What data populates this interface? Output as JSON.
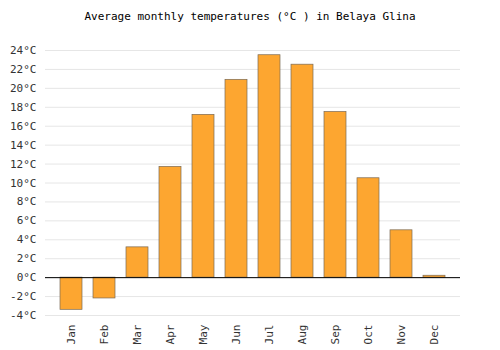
{
  "chart_data": {
    "type": "bar",
    "title": "Average monthly temperatures (°C ) in Belaya Glina",
    "categories": [
      "Jan",
      "Feb",
      "Mar",
      "Apr",
      "May",
      "Jun",
      "Jul",
      "Aug",
      "Sep",
      "Oct",
      "Nov",
      "Dec"
    ],
    "values": [
      -3.4,
      -2.2,
      3.2,
      11.7,
      17.2,
      20.9,
      23.5,
      22.5,
      17.5,
      10.5,
      5.0,
      0.2
    ],
    "color": "#fda630",
    "ylim": [
      -4,
      24
    ],
    "yticks": [
      {
        "value": -4,
        "label": "-4°C"
      },
      {
        "value": -2,
        "label": "-2°C"
      },
      {
        "value": 0,
        "label": "0°C"
      },
      {
        "value": 2,
        "label": "2°C"
      },
      {
        "value": 4,
        "label": "4°C"
      },
      {
        "value": 6,
        "label": "6°C"
      },
      {
        "value": 8,
        "label": "8°C"
      },
      {
        "value": 10,
        "label": "10°C"
      },
      {
        "value": 12,
        "label": "12°C"
      },
      {
        "value": 14,
        "label": "14°C"
      },
      {
        "value": 16,
        "label": "16°C"
      },
      {
        "value": 18,
        "label": "18°C"
      },
      {
        "value": 20,
        "label": "20°C"
      },
      {
        "value": 22,
        "label": "22°C"
      },
      {
        "value": 24,
        "label": "24°C"
      }
    ],
    "grid": true
  }
}
